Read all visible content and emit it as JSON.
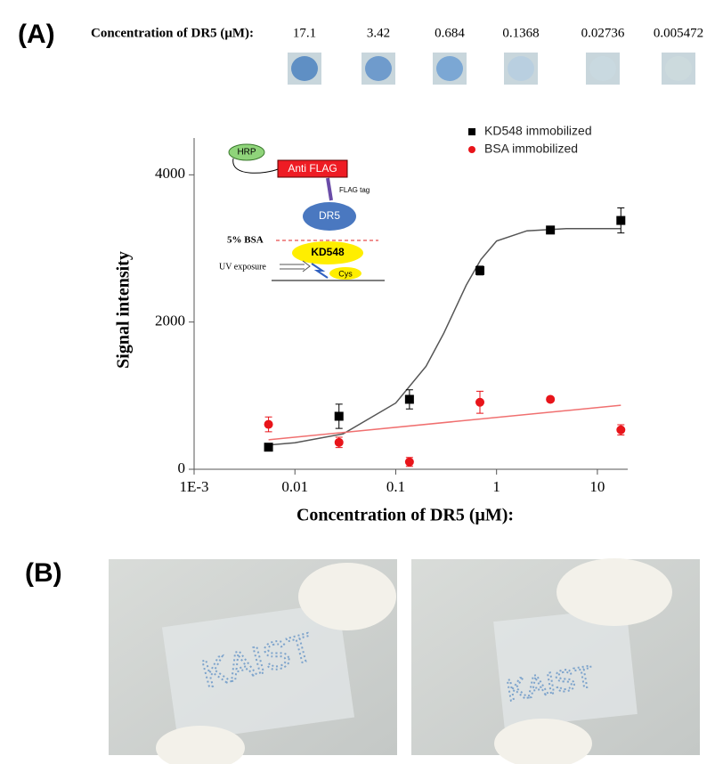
{
  "panels": [
    "(A)",
    "(B)"
  ],
  "strip": {
    "label": "Concentration of DR5 (μM):",
    "concentrations": [
      17.1,
      3.42,
      0.684,
      0.1368,
      0.02736,
      0.005472
    ]
  },
  "inset": {
    "hrp": "HRP",
    "anti_flag": "Anti FLAG",
    "flag_tag": "FLAG tag",
    "dr5": "DR5",
    "bsa": "5% BSA",
    "kd548": "KD548",
    "uv": "UV exposure",
    "cys": "Cys"
  },
  "chart_data": {
    "type": "scatter",
    "log_x": true,
    "xlabel": "Concentration of DR5 (μM):",
    "ylabel": "Signal intensity",
    "xlim": [
      0.001,
      20
    ],
    "ylim": [
      0,
      4500
    ],
    "xticks": [
      {
        "value": 0.001,
        "label": "1E-3"
      },
      0.01,
      0.1,
      1,
      10
    ],
    "yticks": [
      0,
      2000,
      4000
    ],
    "legend": "top-right",
    "series": [
      {
        "name": "KD548 immobilized",
        "color": "#000000",
        "marker": "square",
        "x": [
          0.005472,
          0.02736,
          0.1368,
          0.684,
          3.42,
          17.1
        ],
        "values": [
          300,
          720,
          950,
          2700,
          3250,
          3380
        ],
        "errors": [
          20,
          165,
          130,
          60,
          20,
          170
        ]
      },
      {
        "name": "BSA immobilized",
        "color": "#e8141a",
        "marker": "circle",
        "x": [
          0.005472,
          0.02736,
          0.1368,
          0.684,
          3.42,
          17.1
        ],
        "values": [
          610,
          365,
          100,
          910,
          950,
          535
        ],
        "errors": [
          100,
          70,
          60,
          150,
          30,
          70
        ]
      }
    ],
    "fits": [
      {
        "color": "#555555",
        "x": [
          0.005472,
          0.01,
          0.03,
          0.1,
          0.2,
          0.3,
          0.5,
          0.7,
          1,
          2,
          5,
          17.1
        ],
        "values": [
          330,
          360,
          480,
          900,
          1400,
          1850,
          2500,
          2850,
          3100,
          3240,
          3270,
          3270
        ]
      },
      {
        "color": "#f07070",
        "x": [
          0.005472,
          17.1
        ],
        "values": [
          400,
          870
        ]
      }
    ]
  },
  "photos": [
    {
      "text": "KAIST"
    },
    {
      "text": "KAIST"
    }
  ]
}
